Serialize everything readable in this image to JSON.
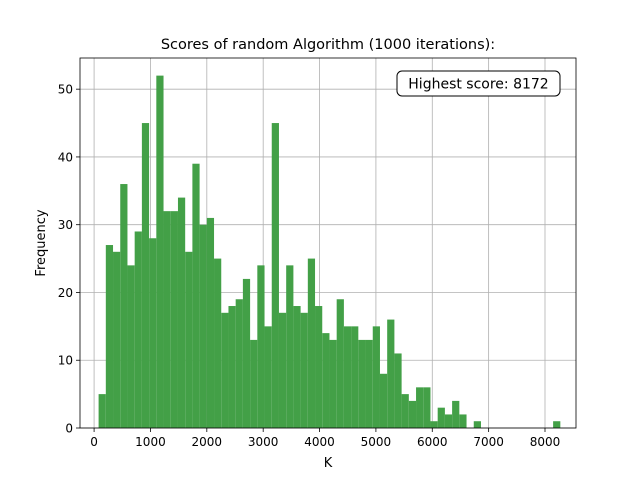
{
  "chart_data": {
    "type": "bar",
    "title": "Scores of random Algorithm (1000 iterations):",
    "xlabel": "K",
    "ylabel": "Frequency",
    "xlim": [
      -250,
      8550
    ],
    "ylim": [
      0,
      54.6
    ],
    "xticks": [
      0,
      1000,
      2000,
      3000,
      4000,
      5000,
      6000,
      7000,
      8000
    ],
    "yticks": [
      0,
      10,
      20,
      30,
      40,
      50
    ],
    "grid": true,
    "bar_color": "#43a047",
    "annotation": {
      "text": "Highest score: 8172",
      "placement": "top-right"
    },
    "bin_start": 80,
    "bin_width": 128,
    "values": [
      5,
      27,
      26,
      36,
      24,
      29,
      45,
      28,
      52,
      32,
      32,
      34,
      26,
      39,
      30,
      31,
      25,
      17,
      18,
      19,
      22,
      13,
      24,
      15,
      45,
      17,
      24,
      18,
      17,
      25,
      18,
      14,
      13,
      19,
      15,
      15,
      13,
      13,
      15,
      8,
      16,
      11,
      5,
      4,
      6,
      6,
      1,
      3,
      2,
      4,
      2,
      0,
      1,
      0,
      0,
      0,
      0,
      0,
      0,
      0,
      0,
      0,
      0,
      1
    ]
  }
}
